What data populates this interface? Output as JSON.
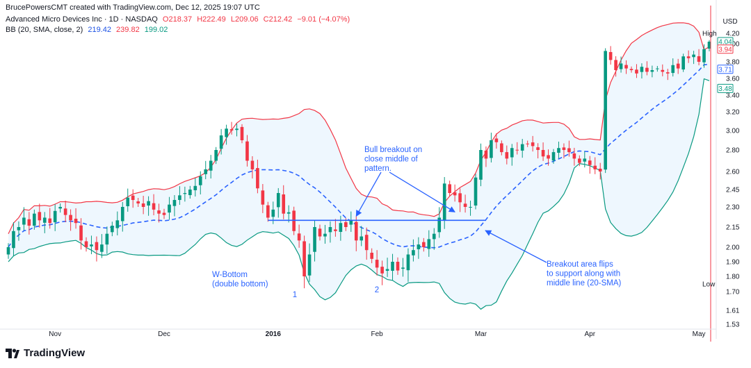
{
  "header": {
    "attribution": "BrucePowersCMT created with TradingView.com, Dec 12, 2025 19:07 UTC",
    "symbol": "Advanced Micro Devices Inc · 1D · NASDAQ",
    "ohlc": {
      "o": "O218.37",
      "h": "H222.49",
      "l": "L209.06",
      "c": "C212.42",
      "chg": "−9.01 (−4.07%)"
    },
    "indicator": "BB (20, SMA, close, 2)",
    "bb_values": {
      "mid": "219.42",
      "upper": "239.82",
      "lower": "199.02"
    }
  },
  "footer": {
    "brand": "TradingView"
  },
  "chart_data": {
    "type": "candlestick",
    "currency_label": "USD",
    "price_ticks": [
      "4.20",
      "4.00",
      "3.80",
      "3.60",
      "3.40",
      "3.20",
      "3.00",
      "2.80",
      "2.60",
      "2.45",
      "2.30",
      "2.15",
      "2.00",
      "1.90",
      "1.80",
      "1.70",
      "1.61",
      "1.53"
    ],
    "price_tag_values": [
      4.2,
      4.0,
      3.8,
      3.6,
      3.4,
      3.2,
      3.0,
      2.8,
      2.6,
      2.45,
      2.3,
      2.15,
      2.0,
      1.9,
      1.8,
      1.7,
      1.61,
      1.53
    ],
    "x_labels": [
      {
        "label": "Nov",
        "index": 9
      },
      {
        "label": "Dec",
        "index": 30
      },
      {
        "label": "2016",
        "index": 51
      },
      {
        "label": "Feb",
        "index": 71
      },
      {
        "label": "Mar",
        "index": 91
      },
      {
        "label": "Apr",
        "index": 112
      },
      {
        "label": "May",
        "index": 133
      }
    ],
    "markers": [
      {
        "label": "High",
        "value": "4.20"
      },
      {
        "label": "Low",
        "value": "1.75"
      }
    ],
    "price_tags": [
      {
        "value": "4.04",
        "color": "#089981",
        "y": 4.04
      },
      {
        "value": "3.94",
        "color": "#f23645",
        "y": 3.94
      },
      {
        "value": "3.71",
        "color": "#2962ff",
        "y": 3.71
      },
      {
        "value": "3.48",
        "color": "#089981",
        "y": 3.48
      }
    ],
    "closes": [
      2.0,
      2.12,
      2.15,
      2.22,
      2.16,
      2.25,
      2.2,
      2.22,
      2.18,
      2.27,
      2.3,
      2.24,
      2.2,
      2.18,
      2.05,
      2.0,
      2.02,
      1.98,
      2.02,
      2.1,
      2.16,
      2.2,
      2.3,
      2.38,
      2.36,
      2.33,
      2.3,
      2.35,
      2.28,
      2.25,
      2.24,
      2.32,
      2.36,
      2.4,
      2.42,
      2.45,
      2.48,
      2.56,
      2.62,
      2.7,
      2.8,
      2.95,
      3.02,
      3.0,
      3.02,
      2.9,
      2.7,
      2.62,
      2.46,
      2.32,
      2.22,
      2.28,
      2.42,
      2.25,
      2.26,
      2.12,
      2.05,
      1.8,
      1.95,
      2.15,
      2.08,
      2.1,
      2.15,
      2.12,
      2.18,
      2.15,
      2.2,
      2.05,
      2.08,
      1.98,
      1.92,
      1.86,
      1.82,
      1.85,
      1.9,
      1.84,
      1.86,
      1.95,
      1.98,
      2.02,
      2.0,
      2.06,
      2.1,
      2.22,
      2.5,
      2.42,
      2.4,
      2.34,
      2.3,
      2.3,
      2.55,
      2.8,
      2.72,
      2.9,
      2.88,
      2.78,
      2.72,
      2.82,
      2.8,
      2.86,
      2.86,
      2.84,
      2.8,
      2.74,
      2.72,
      2.78,
      2.82,
      2.8,
      2.78,
      2.72,
      2.68,
      2.72,
      2.66,
      2.62,
      2.6,
      3.92,
      3.82,
      3.7,
      3.78,
      3.72,
      3.7,
      3.66,
      3.74,
      3.68,
      3.7,
      3.72,
      3.68,
      3.66,
      3.76,
      3.72,
      3.86,
      3.84,
      3.88,
      3.8,
      3.94,
      4.04
    ],
    "series": [
      {
        "name": "BB basis (20-SMA)",
        "color": "#2962ff"
      },
      {
        "name": "BB upper",
        "color": "#f23645"
      },
      {
        "name": "BB lower",
        "color": "#089981"
      }
    ],
    "annotations": [
      {
        "lines": [
          "Bull breakout on",
          "close middle of",
          "pattern."
        ]
      },
      {
        "lines": [
          "W-Bottom",
          "(double bottom)"
        ]
      },
      {
        "lines": [
          "Breakout area flips",
          "to support along with",
          "middle line (20-SMA)"
        ]
      },
      {
        "lines": [
          "1"
        ]
      },
      {
        "lines": [
          "2"
        ]
      }
    ],
    "breakout_level": 2.2
  }
}
